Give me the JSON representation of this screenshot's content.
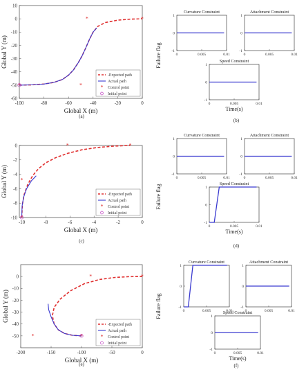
{
  "chart_data": [
    {
      "id": "a",
      "caption": "(a)",
      "type": "line",
      "xlabel": "Global X (m)",
      "ylabel": "Global Y (m)",
      "xlim": [
        -100,
        0
      ],
      "ylim": [
        -60,
        10
      ],
      "xticks": [
        -100,
        -80,
        -60,
        -40,
        -20,
        0
      ],
      "yticks": [
        -60,
        -50,
        -40,
        -30,
        -20,
        -10,
        0,
        10
      ],
      "legend": {
        "position": "bottom-right",
        "entries": [
          "Expected path",
          "Actual path",
          "Control point",
          "Initial point"
        ]
      },
      "series": [
        {
          "name": "Expected path",
          "style": "dashed",
          "color": "#e03030",
          "x": [
            -100,
            -90,
            -80,
            -72,
            -65,
            -60,
            -56,
            -52,
            -49,
            -46,
            -43,
            -40,
            -36,
            -30,
            -20,
            -10,
            0
          ],
          "y": [
            -50,
            -49.8,
            -49.2,
            -48,
            -45.8,
            -42.5,
            -38.6,
            -33,
            -28,
            -22,
            -15.5,
            -10,
            -5.6,
            -2.8,
            -1.0,
            -0.3,
            0
          ]
        },
        {
          "name": "Actual path",
          "style": "solid",
          "color": "#3a3ad0",
          "x": [
            -100,
            -90,
            -80,
            -72,
            -65,
            -60,
            -56,
            -52,
            -49,
            -46,
            -43,
            -40,
            -37
          ],
          "y": [
            -50,
            -49.8,
            -49.2,
            -48,
            -45.8,
            -42.5,
            -38.6,
            -33,
            -28,
            -22,
            -15.5,
            -10,
            -6.8
          ]
        }
      ],
      "control_points": {
        "x": [
          -100,
          -50,
          -45,
          0
        ],
        "y": [
          -50,
          -50,
          0,
          0
        ]
      },
      "initial_point": {
        "x": -100,
        "y": -50
      }
    },
    {
      "id": "b",
      "caption": "(b)",
      "type": "line",
      "ylabel": "Failure flag",
      "subplots": [
        {
          "title": "Curvature Constraint",
          "xlim": [
            0,
            0.01
          ],
          "ylim": [
            -1,
            1
          ],
          "xticks": [
            0,
            0.005,
            0.01
          ],
          "yticks": [
            -1,
            0,
            1
          ],
          "x": [
            0,
            0.0095
          ],
          "y": [
            0,
            0
          ]
        },
        {
          "title": "Attachment Constraint",
          "xlim": [
            0,
            0.01
          ],
          "ylim": [
            -1,
            1
          ],
          "xticks": [
            0,
            0.005,
            0.01
          ],
          "yticks": [
            -1,
            0,
            1
          ],
          "x": [
            0,
            0.0095
          ],
          "y": [
            0,
            0
          ]
        },
        {
          "title": "Speed Constraint",
          "xlabel": "Time(s)",
          "xlim": [
            0,
            0.01
          ],
          "ylim": [
            -1,
            1
          ],
          "xticks": [
            0,
            0.005,
            0.01
          ],
          "yticks": [
            -1,
            0,
            1
          ],
          "x": [
            0,
            0.0095
          ],
          "y": [
            0,
            0
          ]
        }
      ]
    },
    {
      "id": "c",
      "caption": "(c)",
      "type": "line",
      "xlabel": "Global X (m)",
      "ylabel": "Global Y (m)",
      "xlim": [
        -10.2,
        0
      ],
      "ylim": [
        -10,
        0
      ],
      "xticks": [
        -10,
        -8,
        -6,
        -4,
        -2,
        0
      ],
      "yticks": [
        -10,
        -8,
        -6,
        -4,
        -2,
        0
      ],
      "legend": {
        "position": "bottom-right",
        "entries": [
          "Expected path",
          "Actual path",
          "Control point",
          "Initial point"
        ]
      },
      "series": [
        {
          "name": "Expected path",
          "style": "dashed",
          "color": "#e03030",
          "x": [
            -10,
            -9.95,
            -9.8,
            -9.5,
            -9.1,
            -8.6,
            -8.0,
            -7.2,
            -6.2,
            -5.0,
            -3.8,
            -2.6,
            -1.6,
            -1.0
          ],
          "y": [
            -10,
            -8.2,
            -6.8,
            -5.4,
            -4.2,
            -3.2,
            -2.4,
            -1.7,
            -1.1,
            -0.6,
            -0.3,
            -0.12,
            -0.03,
            0
          ]
        },
        {
          "name": "Actual path",
          "style": "solid",
          "color": "#3a3ad0",
          "x": [
            -10,
            -9.97,
            -9.85,
            -9.6,
            -9.2,
            -8.8
          ],
          "y": [
            -10,
            -8.4,
            -7.2,
            -6.0,
            -4.9,
            -4.2
          ]
        }
      ],
      "control_points": {
        "x": [
          -10,
          -10,
          -6.2,
          -1.0
        ],
        "y": [
          -10,
          -4.8,
          0,
          0
        ]
      },
      "initial_point": {
        "x": -10,
        "y": -10
      }
    },
    {
      "id": "d",
      "caption": "(d)",
      "type": "line",
      "ylabel": "Failure flag",
      "subplots": [
        {
          "title": "Curvature Constraint",
          "xlim": [
            0,
            0.01
          ],
          "ylim": [
            -1,
            1
          ],
          "xticks": [
            0,
            0.005,
            0.01
          ],
          "yticks": [
            -1,
            0,
            1
          ],
          "x": [
            0,
            0.0095
          ],
          "y": [
            0,
            0
          ]
        },
        {
          "title": "Attachment Constraint",
          "xlim": [
            0,
            0.01
          ],
          "ylim": [
            -1,
            1
          ],
          "xticks": [
            0,
            0.005,
            0.01
          ],
          "yticks": [
            -1,
            0,
            1
          ],
          "x": [
            0,
            0.0095
          ],
          "y": [
            0,
            0
          ]
        },
        {
          "title": "Speed Constraint",
          "xlabel": "Time(s)",
          "xlim": [
            0,
            0.01
          ],
          "ylim": [
            -1,
            1
          ],
          "xticks": [
            0,
            0.005,
            0.01
          ],
          "yticks": [
            -1,
            0,
            1
          ],
          "x": [
            0,
            0.001,
            0.002,
            0.0095
          ],
          "y": [
            -1,
            -1,
            1,
            1
          ]
        }
      ]
    },
    {
      "id": "e",
      "caption": "(e)",
      "type": "line",
      "xlabel": "Global X (m)",
      "ylabel": "Global Y (m)",
      "xlim": [
        -200,
        0
      ],
      "ylim": [
        -60,
        10
      ],
      "xticks": [
        -200,
        -150,
        -100,
        -50,
        0
      ],
      "yticks": [
        -50,
        -40,
        -30,
        -20,
        -10,
        0
      ],
      "legend": {
        "position": "bottom-right",
        "entries": [
          "Expected path",
          "Actual path",
          "Control point",
          "Initial point"
        ]
      },
      "series": [
        {
          "name": "Expected path",
          "style": "dashed",
          "color": "#e03030",
          "x": [
            -100,
            -115,
            -128,
            -138,
            -145,
            -148,
            -145,
            -135,
            -118,
            -95,
            -70,
            -45,
            -20,
            0
          ],
          "y": [
            -50,
            -49.5,
            -48,
            -45,
            -40,
            -33,
            -26,
            -19,
            -12,
            -6,
            -2.5,
            -0.8,
            -0.1,
            0
          ]
        },
        {
          "name": "Actual path",
          "style": "solid",
          "color": "#3a3ad0",
          "x": [
            -100,
            -115,
            -128,
            -138,
            -145,
            -150,
            -154,
            -155
          ],
          "y": [
            -50,
            -49.5,
            -48,
            -45,
            -40,
            -34,
            -28,
            -23
          ]
        }
      ],
      "control_points": {
        "x": [
          -100,
          -180,
          -85,
          0
        ],
        "y": [
          -50,
          -50,
          0,
          0
        ]
      },
      "initial_point": {
        "x": -100,
        "y": -50
      }
    },
    {
      "id": "f",
      "caption": "(f)",
      "type": "line",
      "ylabel": "Failure flag",
      "subplots": [
        {
          "title": "Curvature Constraint",
          "xlim": [
            0,
            0.01
          ],
          "ylim": [
            -1,
            1
          ],
          "xticks": [
            0,
            0.005,
            0.01
          ],
          "yticks": [
            -1,
            0,
            1
          ],
          "x": [
            0,
            0.001,
            0.002,
            0.0095
          ],
          "y": [
            -1,
            -1,
            1,
            1
          ]
        },
        {
          "title": "Attachment Constraint",
          "xlim": [
            0,
            0.01
          ],
          "ylim": [
            -1,
            1
          ],
          "xticks": [
            0,
            0.005,
            0.01
          ],
          "yticks": [
            -1,
            0,
            1
          ],
          "x": [
            0,
            0.0095
          ],
          "y": [
            0,
            0
          ]
        },
        {
          "title": "Speed Constraint",
          "xlabel": "Time(s)",
          "xlim": [
            0,
            0.01
          ],
          "ylim": [
            -1,
            1
          ],
          "xticks": [
            0,
            0.005,
            0.01
          ],
          "yticks": [
            -1,
            0,
            1
          ],
          "x": [
            0,
            0.0095
          ],
          "y": [
            0,
            0
          ]
        }
      ]
    }
  ],
  "legend_labels": {
    "expected": "-Expected path",
    "actual": "Actual path",
    "control": "Control point",
    "initial": "Initial point"
  },
  "colors": {
    "expected": "#e03030",
    "actual": "#3a3ad0",
    "control": "#e03030",
    "initial": "#c040c0"
  }
}
